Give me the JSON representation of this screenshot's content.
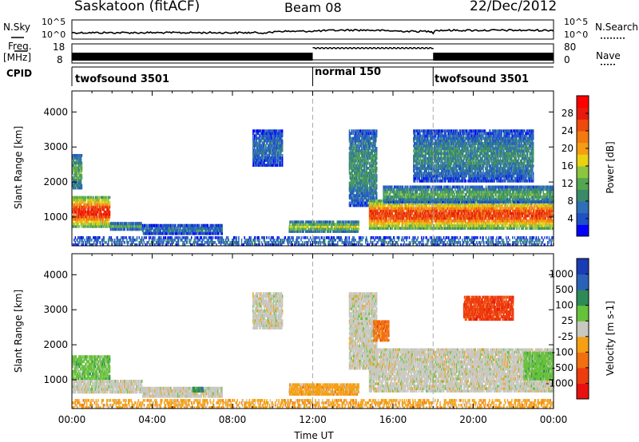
{
  "header": {
    "station": "Saskatoon (fitACF)",
    "beam": "Beam 08",
    "date": "22/Dec/2012"
  },
  "top_strips": {
    "nsky_label": "N.Sky",
    "nsky_ticks": [
      "10^5",
      "10^0"
    ],
    "nsearch_label": "N.Search",
    "nsearch_ticks": [
      "10^5",
      "10^0"
    ],
    "freq_label": "Freq.",
    "freq_unit": "[MHz]",
    "freq_ticks": [
      "18",
      "8"
    ],
    "nave_label": "Nave",
    "nave_ticks": [
      "80",
      "0"
    ],
    "cpid_label": "CPID",
    "cpid_segments": [
      {
        "name": "twofsound 3501",
        "start_h": 0
      },
      {
        "name": "normal 150",
        "start_h": 12
      },
      {
        "name": "twofsound 3501",
        "start_h": 18
      }
    ]
  },
  "chart_data": [
    {
      "type": "heatmap",
      "title": "",
      "xlabel": "Time UT",
      "ylabel": "Slant Range [km]",
      "xlim": [
        0,
        24
      ],
      "ylim": [
        180,
        4600
      ],
      "x_ticks": [
        "00:00",
        "04:00",
        "08:00",
        "12:00",
        "16:00",
        "20:00",
        "00:00"
      ],
      "y_ticks": [
        1000,
        2000,
        3000,
        4000
      ],
      "colorbar": {
        "label": "Power [dB]",
        "ticks": [
          4,
          8,
          12,
          16,
          20,
          24,
          28
        ],
        "range": [
          0,
          32
        ],
        "colors": [
          "#0000ff",
          "#1e50c8",
          "#2f6fb8",
          "#3a8a6a",
          "#54a650",
          "#8cc63f",
          "#e9d212",
          "#f59e14",
          "#f27a10",
          "#ee4a0e",
          "#e81a0c",
          "#ff0000"
        ]
      },
      "regions": [
        {
          "t0": 0.0,
          "t1": 1.9,
          "r0": 700,
          "r1": 1600,
          "level": 27
        },
        {
          "t0": 0.0,
          "t1": 0.5,
          "r0": 1800,
          "r1": 2800,
          "level": 12
        },
        {
          "t0": 1.9,
          "t1": 3.5,
          "r0": 620,
          "r1": 860,
          "level": 13
        },
        {
          "t0": 3.5,
          "t1": 7.5,
          "r0": 500,
          "r1": 800,
          "level": 8
        },
        {
          "t0": 9.0,
          "t1": 10.5,
          "r0": 2450,
          "r1": 3500,
          "level": 7
        },
        {
          "t0": 10.8,
          "t1": 14.3,
          "r0": 560,
          "r1": 900,
          "level": 16
        },
        {
          "t0": 13.8,
          "t1": 15.2,
          "r0": 1300,
          "r1": 3500,
          "level": 10
        },
        {
          "t0": 14.8,
          "t1": 24.0,
          "r0": 650,
          "r1": 1500,
          "level": 26
        },
        {
          "t0": 15.5,
          "t1": 24.0,
          "r0": 1400,
          "r1": 1900,
          "level": 12
        },
        {
          "t0": 17.0,
          "t1": 23.0,
          "r0": 2000,
          "r1": 3500,
          "level": 9
        },
        {
          "t0": 0.0,
          "t1": 24.0,
          "r0": 180,
          "r1": 450,
          "level": 8
        }
      ]
    },
    {
      "type": "heatmap",
      "title": "",
      "xlabel": "Time UT",
      "ylabel": "Slant Range [km]",
      "xlim": [
        0,
        24
      ],
      "ylim": [
        180,
        4600
      ],
      "x_ticks": [
        "00:00",
        "04:00",
        "08:00",
        "12:00",
        "16:00",
        "20:00",
        "00:00"
      ],
      "y_ticks": [
        1000,
        2000,
        3000,
        4000
      ],
      "colorbar": {
        "label": "Velocity [m s-1]",
        "ticks": [
          "1000",
          "500",
          "100",
          "25",
          "-25",
          "-100",
          "-500",
          "-1000"
        ],
        "colors": [
          "#1a3cb4",
          "#2a62b8",
          "#2e8b57",
          "#66c23a",
          "#c8c8c0",
          "#f5a014",
          "#f07010",
          "#ee3c0e",
          "#e81010"
        ]
      },
      "regions": [
        {
          "t0": 0.0,
          "t1": 1.9,
          "r0": 1000,
          "r1": 1700,
          "level": 3
        },
        {
          "t0": 0.0,
          "t1": 3.5,
          "r0": 620,
          "r1": 1000,
          "level": 4
        },
        {
          "t0": 3.5,
          "t1": 7.5,
          "r0": 500,
          "r1": 800,
          "level": 4
        },
        {
          "t0": 6.0,
          "t1": 6.6,
          "r0": 650,
          "r1": 800,
          "level": 2
        },
        {
          "t0": 9.0,
          "t1": 10.5,
          "r0": 2450,
          "r1": 3500,
          "level": 4
        },
        {
          "t0": 10.8,
          "t1": 14.3,
          "r0": 560,
          "r1": 900,
          "level": 5
        },
        {
          "t0": 13.8,
          "t1": 15.2,
          "r0": 1300,
          "r1": 3500,
          "level": 4
        },
        {
          "t0": 14.8,
          "t1": 24.0,
          "r0": 650,
          "r1": 1900,
          "level": 4
        },
        {
          "t0": 22.5,
          "t1": 24.0,
          "r0": 1000,
          "r1": 1800,
          "level": 3
        },
        {
          "t0": 19.5,
          "t1": 22.0,
          "r0": 2700,
          "r1": 3400,
          "level": 7
        },
        {
          "t0": 15.0,
          "t1": 15.8,
          "r0": 2100,
          "r1": 2700,
          "level": 6
        },
        {
          "t0": 0.0,
          "t1": 24.0,
          "r0": 180,
          "r1": 450,
          "level": 5
        }
      ]
    }
  ]
}
